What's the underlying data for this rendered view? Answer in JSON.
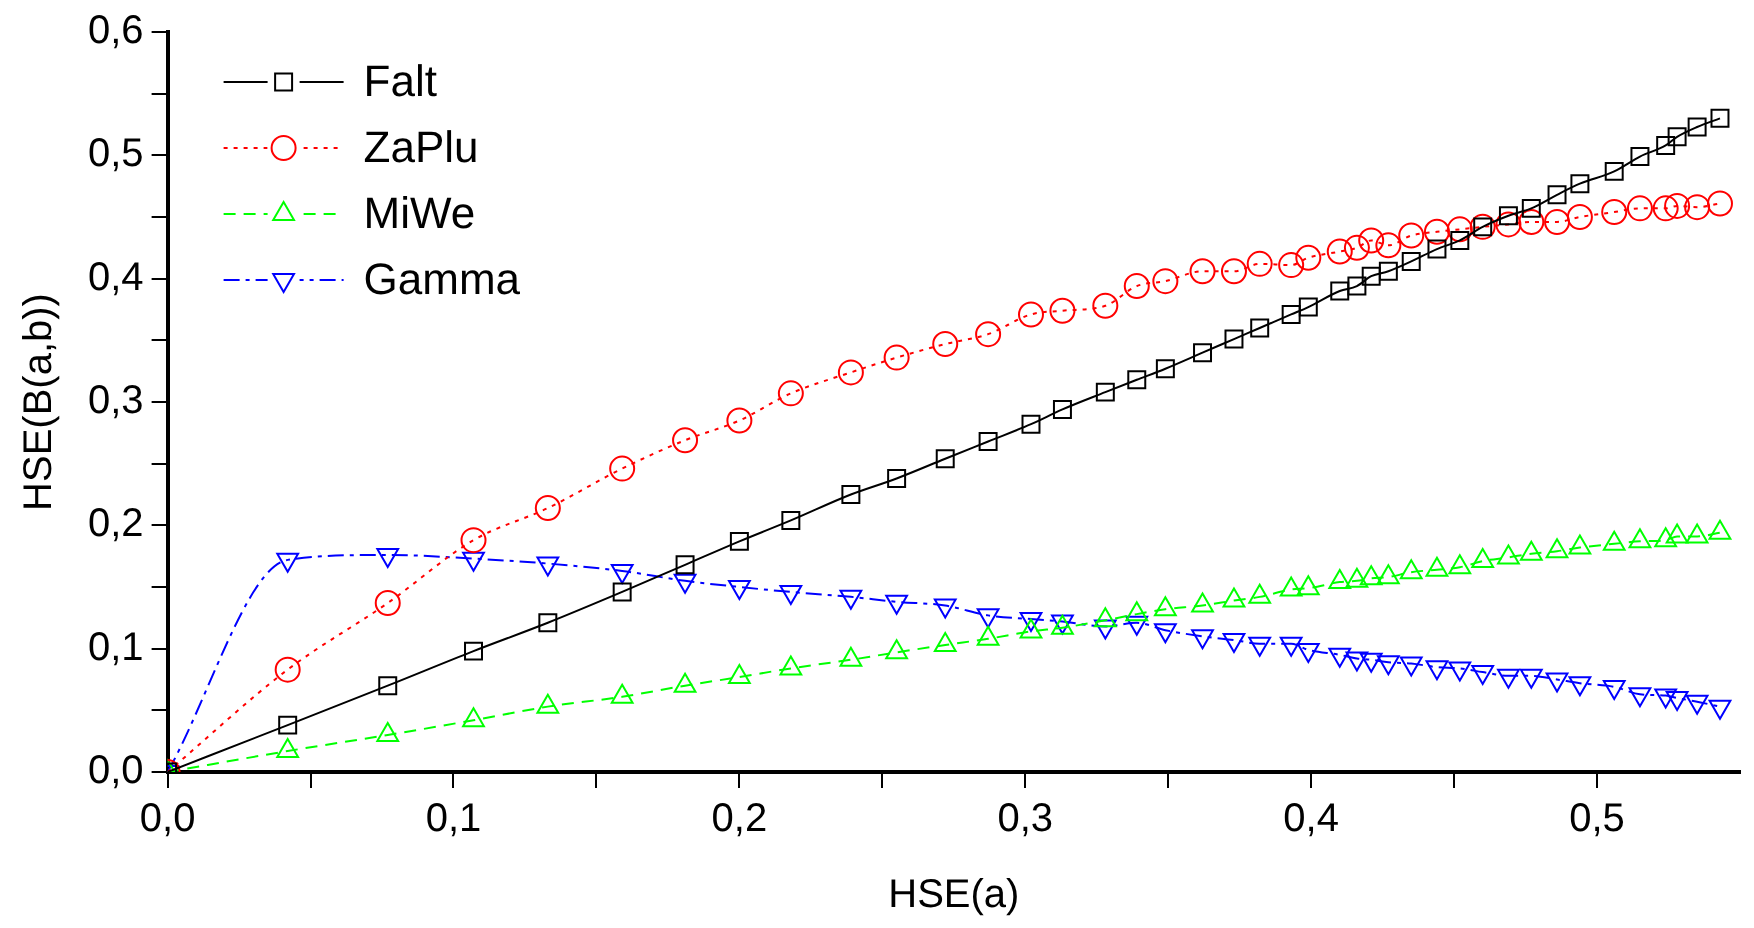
{
  "chart_data": {
    "type": "line",
    "xlabel": "HSE(a)",
    "ylabel": "HSE(B(a,b))",
    "x": [
      0,
      0.042,
      0.077,
      0.107,
      0.133,
      0.159,
      0.181,
      0.2,
      0.218,
      0.239,
      0.255,
      0.272,
      0.287,
      0.302,
      0.313,
      0.328,
      0.339,
      0.349,
      0.362,
      0.373,
      0.382,
      0.393,
      0.399,
      0.41,
      0.416,
      0.421,
      0.427,
      0.435,
      0.444,
      0.452,
      0.46,
      0.469,
      0.477,
      0.486,
      0.494,
      0.506,
      0.515,
      0.524,
      0.528,
      0.535,
      0.543
    ],
    "series": [
      {
        "name": "Falt",
        "color": "#000000",
        "marker": "square",
        "line_style": "solid",
        "values": [
          0,
          0.038,
          0.07,
          0.098,
          0.121,
          0.146,
          0.168,
          0.187,
          0.204,
          0.225,
          0.238,
          0.254,
          0.268,
          0.282,
          0.294,
          0.308,
          0.318,
          0.327,
          0.34,
          0.351,
          0.36,
          0.371,
          0.377,
          0.39,
          0.394,
          0.402,
          0.406,
          0.414,
          0.424,
          0.431,
          0.442,
          0.451,
          0.457,
          0.468,
          0.477,
          0.487,
          0.499,
          0.508,
          0.515,
          0.523,
          0.53
        ]
      },
      {
        "name": "ZaPlu",
        "color": "#ff0000",
        "marker": "circle",
        "line_style": "dotted",
        "values": [
          0,
          0.083,
          0.137,
          0.188,
          0.214,
          0.246,
          0.269,
          0.285,
          0.307,
          0.324,
          0.336,
          0.347,
          0.355,
          0.371,
          0.374,
          0.378,
          0.394,
          0.398,
          0.406,
          0.406,
          0.412,
          0.411,
          0.417,
          0.422,
          0.425,
          0.431,
          0.427,
          0.435,
          0.438,
          0.44,
          0.442,
          0.444,
          0.446,
          0.446,
          0.45,
          0.454,
          0.457,
          0.457,
          0.459,
          0.458,
          0.461
        ]
      },
      {
        "name": "MiWe",
        "color": "#00ff00",
        "marker": "triangle",
        "line_style": "dashed",
        "values": [
          0,
          0.017,
          0.03,
          0.042,
          0.053,
          0.061,
          0.07,
          0.077,
          0.084,
          0.091,
          0.097,
          0.103,
          0.108,
          0.114,
          0.117,
          0.123,
          0.128,
          0.132,
          0.135,
          0.139,
          0.142,
          0.148,
          0.149,
          0.154,
          0.155,
          0.157,
          0.158,
          0.162,
          0.164,
          0.166,
          0.171,
          0.174,
          0.177,
          0.179,
          0.182,
          0.185,
          0.187,
          0.188,
          0.191,
          0.191,
          0.194
        ]
      },
      {
        "name": "Gamma",
        "color": "#0000ff",
        "marker": "triangle_down",
        "line_style": "dashdot",
        "values": [
          0,
          0.172,
          0.176,
          0.173,
          0.169,
          0.163,
          0.155,
          0.15,
          0.146,
          0.142,
          0.138,
          0.135,
          0.127,
          0.124,
          0.122,
          0.118,
          0.121,
          0.115,
          0.11,
          0.107,
          0.104,
          0.104,
          0.099,
          0.095,
          0.092,
          0.091,
          0.089,
          0.088,
          0.085,
          0.084,
          0.081,
          0.078,
          0.078,
          0.075,
          0.072,
          0.069,
          0.063,
          0.062,
          0.06,
          0.057,
          0.053
        ]
      }
    ],
    "xlim": [
      0,
      0.55
    ],
    "ylim": [
      0,
      0.6
    ],
    "xticks": [
      {
        "value": 0,
        "label": "0,0"
      },
      {
        "value": 0.05,
        "label": null
      },
      {
        "value": 0.1,
        "label": "0,1"
      },
      {
        "value": 0.15,
        "label": null
      },
      {
        "value": 0.2,
        "label": "0,2"
      },
      {
        "value": 0.25,
        "label": null
      },
      {
        "value": 0.3,
        "label": "0,3"
      },
      {
        "value": 0.35,
        "label": null
      },
      {
        "value": 0.4,
        "label": "0,4"
      },
      {
        "value": 0.45,
        "label": null
      },
      {
        "value": 0.5,
        "label": "0,5"
      }
    ],
    "yticks": [
      {
        "value": 0,
        "label": "0,0"
      },
      {
        "value": 0.05,
        "label": null
      },
      {
        "value": 0.1,
        "label": "0,1"
      },
      {
        "value": 0.15,
        "label": null
      },
      {
        "value": 0.2,
        "label": "0,2"
      },
      {
        "value": 0.25,
        "label": null
      },
      {
        "value": 0.3,
        "label": "0,3"
      },
      {
        "value": 0.35,
        "label": null
      },
      {
        "value": 0.4,
        "label": "0,4"
      },
      {
        "value": 0.45,
        "label": null
      },
      {
        "value": 0.5,
        "label": "0,5"
      },
      {
        "value": 0.55,
        "label": null
      },
      {
        "value": 0.6,
        "label": "0,6"
      }
    ],
    "grid": false,
    "legend": "top left"
  }
}
